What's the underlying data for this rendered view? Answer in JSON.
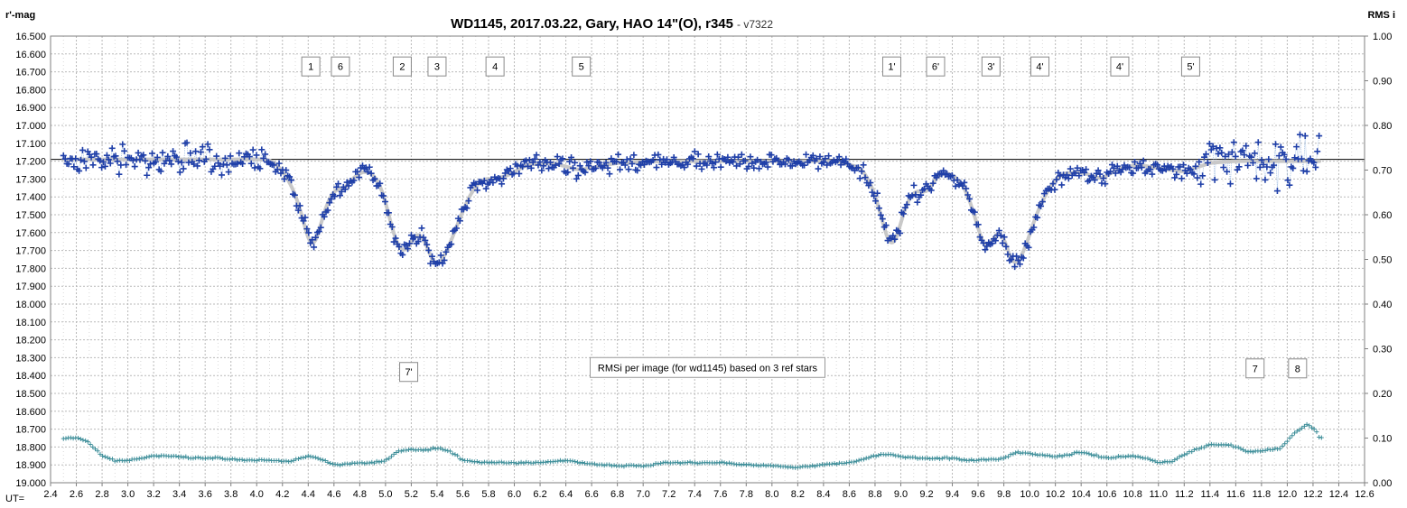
{
  "chart_data": {
    "type": "scatter",
    "title": "WD1145, 2017.03.22,  Gary, HAO 14\"(O), r345",
    "subtitle": "- v7322",
    "ylabel_left": "r'-mag",
    "ylabel_right": "RMS i",
    "xlabel": "UT=",
    "xlim": [
      2.4,
      12.6
    ],
    "ylim_left": [
      19.0,
      16.5
    ],
    "ylim_right": [
      0.0,
      1.0
    ],
    "x_ticks": [
      "2.4",
      "2.6",
      "2.8",
      "3.0",
      "3.2",
      "3.4",
      "3.6",
      "3.8",
      "4.0",
      "4.2",
      "4.4",
      "4.6",
      "4.8",
      "5.0",
      "5.2",
      "5.4",
      "5.6",
      "5.8",
      "6.0",
      "6.2",
      "6.4",
      "6.6",
      "6.8",
      "7.0",
      "7.2",
      "7.4",
      "7.6",
      "7.8",
      "8.0",
      "8.2",
      "8.4",
      "8.6",
      "8.8",
      "9.0",
      "9.2",
      "9.4",
      "9.6",
      "9.8",
      "10.0",
      "10.2",
      "10.4",
      "10.6",
      "10.8",
      "11.0",
      "11.2",
      "11.4",
      "11.6",
      "11.8",
      "12.0",
      "12.2",
      "12.4",
      "12.6"
    ],
    "y_ticks_left": [
      "16.500",
      "16.600",
      "16.700",
      "16.800",
      "16.900",
      "17.000",
      "17.100",
      "17.200",
      "17.300",
      "17.400",
      "17.500",
      "17.600",
      "17.700",
      "17.800",
      "17.900",
      "18.000",
      "18.100",
      "18.200",
      "18.300",
      "18.400",
      "18.500",
      "18.600",
      "18.700",
      "18.800",
      "18.900",
      "19.000"
    ],
    "y_ticks_right": [
      "1.00",
      "0.90",
      "0.80",
      "0.70",
      "0.60",
      "0.50",
      "0.40",
      "0.30",
      "0.20",
      "0.10",
      "0.00"
    ],
    "grid": true,
    "reference_mag": 17.19,
    "dips": [
      {
        "center": 4.43,
        "depth": 0.52,
        "width": 0.075
      },
      {
        "center": 4.68,
        "depth": 0.15,
        "width": 0.05
      },
      {
        "center": 5.15,
        "depth": 0.52,
        "width": 0.07
      },
      {
        "center": 5.4,
        "depth": 0.6,
        "width": 0.09
      },
      {
        "center": 5.85,
        "depth": 0.1,
        "width": 0.06
      },
      {
        "center": 6.5,
        "depth": 0.06,
        "width": 0.1
      },
      {
        "center": 8.93,
        "depth": 0.52,
        "width": 0.065
      },
      {
        "center": 9.15,
        "depth": 0.18,
        "width": 0.05
      },
      {
        "center": 9.65,
        "depth": 0.52,
        "width": 0.065
      },
      {
        "center": 9.88,
        "depth": 0.62,
        "width": 0.09
      },
      {
        "center": 10.35,
        "depth": 0.08,
        "width": 0.06
      },
      {
        "center": 10.7,
        "depth": 0.05,
        "width": 0.07
      },
      {
        "center": 11.2,
        "depth": 0.05,
        "width": 0.08
      }
    ],
    "model_curve": [
      [
        2.5,
        17.19
      ],
      [
        4.1,
        17.19
      ],
      [
        4.2,
        17.25
      ],
      [
        4.3,
        17.38
      ],
      [
        4.38,
        17.58
      ],
      [
        4.43,
        17.71
      ],
      [
        4.48,
        17.6
      ],
      [
        4.55,
        17.42
      ],
      [
        4.62,
        17.35
      ],
      [
        4.68,
        17.36
      ],
      [
        4.75,
        17.29
      ],
      [
        4.85,
        17.25
      ],
      [
        4.95,
        17.31
      ],
      [
        5.02,
        17.48
      ],
      [
        5.08,
        17.66
      ],
      [
        5.15,
        17.72
      ],
      [
        5.22,
        17.62
      ],
      [
        5.28,
        17.6
      ],
      [
        5.34,
        17.72
      ],
      [
        5.4,
        17.8
      ],
      [
        5.48,
        17.7
      ],
      [
        5.56,
        17.55
      ],
      [
        5.66,
        17.38
      ],
      [
        5.75,
        17.3
      ],
      [
        5.85,
        17.3
      ],
      [
        5.95,
        17.28
      ],
      [
        6.1,
        17.22
      ],
      [
        6.3,
        17.21
      ],
      [
        6.5,
        17.25
      ],
      [
        6.65,
        17.23
      ],
      [
        6.8,
        17.21
      ],
      [
        7.2,
        17.2
      ],
      [
        8.0,
        17.2
      ],
      [
        8.5,
        17.2
      ],
      [
        8.7,
        17.24
      ],
      [
        8.8,
        17.38
      ],
      [
        8.88,
        17.6
      ],
      [
        8.93,
        17.7
      ],
      [
        8.98,
        17.6
      ],
      [
        9.05,
        17.42
      ],
      [
        9.12,
        17.36
      ],
      [
        9.2,
        17.38
      ],
      [
        9.3,
        17.27
      ],
      [
        9.4,
        17.27
      ],
      [
        9.5,
        17.35
      ],
      [
        9.58,
        17.52
      ],
      [
        9.65,
        17.7
      ],
      [
        9.72,
        17.63
      ],
      [
        9.78,
        17.58
      ],
      [
        9.83,
        17.7
      ],
      [
        9.88,
        17.8
      ],
      [
        9.96,
        17.7
      ],
      [
        10.05,
        17.5
      ],
      [
        10.15,
        17.35
      ],
      [
        10.25,
        17.27
      ],
      [
        10.4,
        17.26
      ],
      [
        10.55,
        17.3
      ],
      [
        10.7,
        17.24
      ],
      [
        10.85,
        17.22
      ],
      [
        11.0,
        17.24
      ],
      [
        11.2,
        17.26
      ],
      [
        11.4,
        17.21
      ],
      [
        11.6,
        17.2
      ],
      [
        12.25,
        17.2
      ]
    ],
    "rmsi_curve": [
      [
        2.5,
        0.1
      ],
      [
        2.62,
        0.1
      ],
      [
        2.7,
        0.09
      ],
      [
        2.8,
        0.06
      ],
      [
        2.9,
        0.05
      ],
      [
        3.0,
        0.05
      ],
      [
        3.2,
        0.06
      ],
      [
        3.3,
        0.06
      ],
      [
        3.5,
        0.055
      ],
      [
        3.7,
        0.055
      ],
      [
        3.9,
        0.05
      ],
      [
        4.1,
        0.05
      ],
      [
        4.25,
        0.048
      ],
      [
        4.4,
        0.06
      ],
      [
        4.48,
        0.055
      ],
      [
        4.6,
        0.04
      ],
      [
        4.8,
        0.045
      ],
      [
        4.9,
        0.045
      ],
      [
        5.0,
        0.05
      ],
      [
        5.1,
        0.07
      ],
      [
        5.2,
        0.075
      ],
      [
        5.3,
        0.072
      ],
      [
        5.4,
        0.078
      ],
      [
        5.5,
        0.07
      ],
      [
        5.6,
        0.05
      ],
      [
        5.8,
        0.045
      ],
      [
        6.0,
        0.045
      ],
      [
        6.2,
        0.045
      ],
      [
        6.4,
        0.05
      ],
      [
        6.6,
        0.042
      ],
      [
        6.8,
        0.038
      ],
      [
        7.0,
        0.038
      ],
      [
        7.2,
        0.045
      ],
      [
        7.4,
        0.045
      ],
      [
        7.6,
        0.045
      ],
      [
        7.8,
        0.04
      ],
      [
        8.0,
        0.038
      ],
      [
        8.2,
        0.035
      ],
      [
        8.4,
        0.04
      ],
      [
        8.6,
        0.045
      ],
      [
        8.8,
        0.06
      ],
      [
        8.9,
        0.065
      ],
      [
        9.0,
        0.058
      ],
      [
        9.2,
        0.055
      ],
      [
        9.4,
        0.055
      ],
      [
        9.5,
        0.05
      ],
      [
        9.6,
        0.05
      ],
      [
        9.8,
        0.055
      ],
      [
        9.9,
        0.068
      ],
      [
        10.0,
        0.065
      ],
      [
        10.2,
        0.058
      ],
      [
        10.4,
        0.068
      ],
      [
        10.6,
        0.055
      ],
      [
        10.8,
        0.06
      ],
      [
        10.9,
        0.055
      ],
      [
        11.0,
        0.045
      ],
      [
        11.1,
        0.048
      ],
      [
        11.25,
        0.07
      ],
      [
        11.4,
        0.085
      ],
      [
        11.55,
        0.085
      ],
      [
        11.7,
        0.07
      ],
      [
        11.8,
        0.07
      ],
      [
        11.95,
        0.078
      ],
      [
        12.05,
        0.11
      ],
      [
        12.15,
        0.13
      ],
      [
        12.22,
        0.12
      ],
      [
        12.25,
        0.1
      ]
    ],
    "boxes_top": [
      {
        "label": "1",
        "x": 4.42
      },
      {
        "label": "6",
        "x": 4.65
      },
      {
        "label": "2",
        "x": 5.13
      },
      {
        "label": "3",
        "x": 5.4
      },
      {
        "label": "4",
        "x": 5.85
      },
      {
        "label": "5",
        "x": 6.52
      },
      {
        "label": "1'",
        "x": 8.93
      },
      {
        "label": "6'",
        "x": 9.27
      },
      {
        "label": "3'",
        "x": 9.7
      },
      {
        "label": "4'",
        "x": 10.08
      },
      {
        "label": "4'",
        "x": 10.7
      },
      {
        "label": "5'",
        "x": 11.25
      }
    ],
    "boxes_lower": [
      {
        "label": "7'",
        "x": 5.18,
        "y": 18.38
      },
      {
        "label": "7",
        "x": 11.75,
        "y": 18.36
      },
      {
        "label": "8",
        "x": 12.08,
        "y": 18.36
      }
    ],
    "note": "RMSi per image (for wd1145) based on 3 ref stars",
    "note_x": 7.5,
    "note_y": 18.36,
    "colors": {
      "data_points": "#1f3fa8",
      "model_curve": "#c8c8c8",
      "rmsi_points": "#3f8f9a",
      "reference_line": "#000000",
      "grid": "#b9b9b9",
      "connector": "#7fa6d8"
    }
  }
}
